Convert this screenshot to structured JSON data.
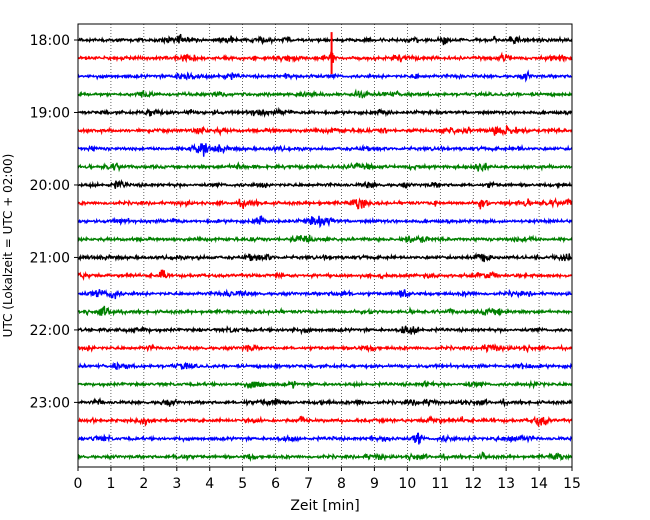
{
  "chart_data": {
    "type": "line",
    "title": "",
    "xlabel": "Zeit  [min]",
    "ylabel": "UTC (Lokalzeit = UTC + 02:00)",
    "xlim": [
      0,
      15
    ],
    "x_ticks": [
      "0",
      "1",
      "2",
      "3",
      "4",
      "5",
      "6",
      "7",
      "8",
      "9",
      "10",
      "11",
      "12",
      "13",
      "14",
      "15"
    ],
    "y_ticks": [
      "18:00",
      "19:00",
      "20:00",
      "21:00",
      "22:00",
      "23:00"
    ],
    "grid": "vertical dotted",
    "trace_interval_min": 15,
    "traces_start": "18:00",
    "traces_end": "23:45",
    "trace_colors_cycle": [
      "#000000",
      "#ff0000",
      "#0000ff",
      "#008000"
    ],
    "events": [
      {
        "trace": "18:15",
        "x_min": 7.7,
        "amplitude": "large"
      },
      {
        "trace": "20:15",
        "x_min": 12.3,
        "amplitude": "medium"
      },
      {
        "trace": "19:30",
        "x_min": 3.8,
        "amplitude": "medium"
      },
      {
        "trace": "20:30",
        "x_min": 5.5,
        "amplitude": "medium"
      },
      {
        "trace": "21:15",
        "x_min": 2.6,
        "amplitude": "medium"
      },
      {
        "trace": "23:30",
        "x_min": 10.3,
        "amplitude": "medium"
      },
      {
        "trace": "18:30",
        "x_min": 13.6,
        "amplitude": "small"
      },
      {
        "trace": "23:15",
        "x_min": 6.8,
        "amplitude": "small"
      }
    ]
  }
}
